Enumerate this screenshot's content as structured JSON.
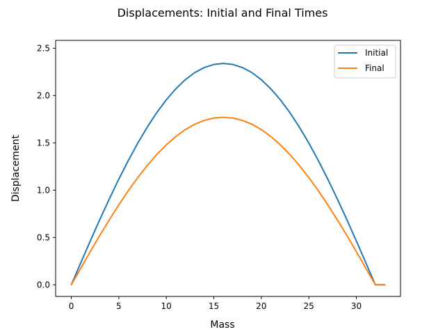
{
  "chart_data": {
    "type": "line",
    "title": "Displacements: Initial and Final Times",
    "xlabel": "Mass",
    "ylabel": "Displacement",
    "xlim": [
      -1.65,
      34.65
    ],
    "ylim": [
      -0.123,
      2.583
    ],
    "xticks": [
      0,
      5,
      10,
      15,
      20,
      25,
      30
    ],
    "yticks": [
      0.0,
      0.5,
      1.0,
      1.5,
      2.0,
      2.5
    ],
    "xtick_labels": [
      "0",
      "5",
      "10",
      "15",
      "20",
      "25",
      "30"
    ],
    "ytick_labels": [
      "0.0",
      "0.5",
      "1.0",
      "1.5",
      "2.0",
      "2.5"
    ],
    "grid": false,
    "legend_position": "top-right",
    "x": [
      0,
      1,
      2,
      3,
      4,
      5,
      6,
      7,
      8,
      9,
      10,
      11,
      12,
      13,
      14,
      15,
      16,
      17,
      18,
      19,
      20,
      21,
      22,
      23,
      24,
      25,
      26,
      27,
      28,
      29,
      30,
      31,
      32,
      33
    ],
    "series": [
      {
        "name": "Initial",
        "color": "#1f77b4",
        "values": [
          0.0,
          0.233,
          0.464,
          0.689,
          0.907,
          1.116,
          1.313,
          1.498,
          1.667,
          1.82,
          1.955,
          2.071,
          2.167,
          2.243,
          2.296,
          2.328,
          2.339,
          2.328,
          2.296,
          2.243,
          2.167,
          2.071,
          1.955,
          1.82,
          1.667,
          1.498,
          1.313,
          1.116,
          0.907,
          0.689,
          0.464,
          0.233,
          0.0,
          0.0
        ]
      },
      {
        "name": "Final",
        "color": "#ff7f0e",
        "values": [
          0.0,
          0.176,
          0.351,
          0.522,
          0.686,
          0.845,
          0.994,
          1.133,
          1.261,
          1.377,
          1.479,
          1.567,
          1.64,
          1.697,
          1.737,
          1.762,
          1.77,
          1.762,
          1.737,
          1.697,
          1.64,
          1.567,
          1.479,
          1.377,
          1.261,
          1.133,
          0.994,
          0.845,
          0.686,
          0.522,
          0.351,
          0.176,
          0.0,
          0.0
        ]
      }
    ]
  }
}
